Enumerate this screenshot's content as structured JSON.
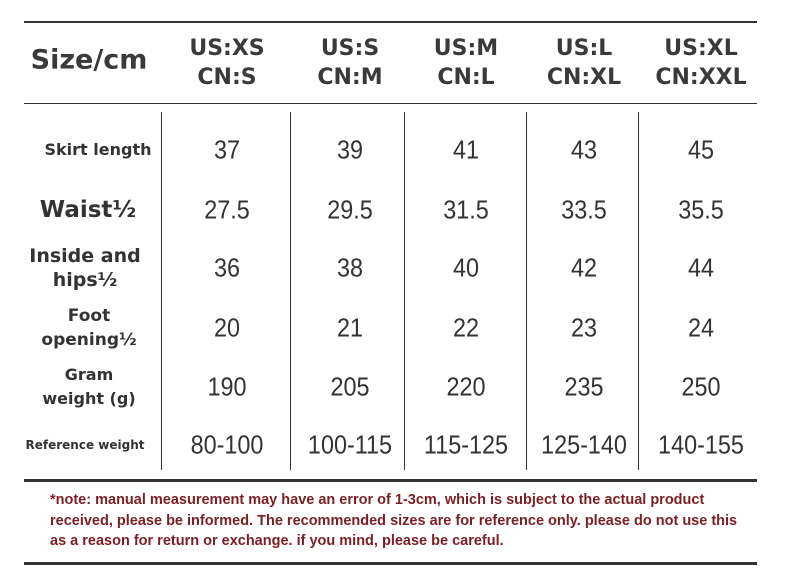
{
  "table": {
    "corner_label": "Size/cm",
    "columns": [
      {
        "us": "US:XS",
        "cn": "CN:S"
      },
      {
        "us": "US:S",
        "cn": "CN:M"
      },
      {
        "us": "US:M",
        "cn": "CN:L"
      },
      {
        "us": "US:L",
        "cn": "CN:XL"
      },
      {
        "us": "US:XL",
        "cn": "CN:XXL"
      }
    ],
    "rows": [
      {
        "label": [
          "Skirt length"
        ],
        "values": [
          "37",
          "39",
          "41",
          "43",
          "45"
        ]
      },
      {
        "label": [
          "Waist½"
        ],
        "values": [
          "27.5",
          "29.5",
          "31.5",
          "33.5",
          "35.5"
        ]
      },
      {
        "label": [
          "Inside and",
          "hips½"
        ],
        "values": [
          "36",
          "38",
          "40",
          "42",
          "44"
        ]
      },
      {
        "label": [
          "Foot",
          "opening½"
        ],
        "values": [
          "20",
          "21",
          "22",
          "23",
          "24"
        ]
      },
      {
        "label": [
          "Gram",
          "weight (g)"
        ],
        "values": [
          "190",
          "205",
          "220",
          "235",
          "250"
        ]
      },
      {
        "label": [
          "Reference weight"
        ],
        "values": [
          "80-100",
          "100-115",
          "115-125",
          "125-140",
          "140-155"
        ]
      }
    ]
  },
  "note": "*note: manual measurement may have an error of 1-3cm, which is subject to the actual product received, please be informed.   The recommended sizes are for reference only. please do not use this as a reason for return or exchange. if you mind, please be careful.",
  "colors": {
    "text": "#333333",
    "note": "#7a1f24",
    "lines": "#333333"
  }
}
